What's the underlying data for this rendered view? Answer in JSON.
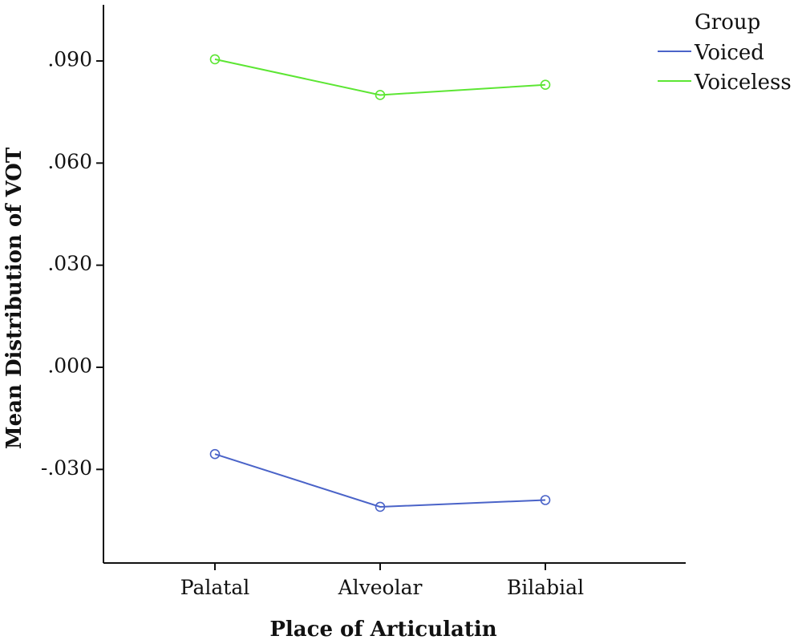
{
  "chart_data": {
    "type": "line",
    "categories": [
      "Palatal",
      "Alveolar",
      "Bilabial"
    ],
    "series": [
      {
        "name": "Voiced",
        "color": "#4a63c8",
        "values": [
          -0.0255,
          -0.041,
          -0.039
        ]
      },
      {
        "name": "Voiceless",
        "color": "#5ce633",
        "values": [
          0.0905,
          0.08,
          0.083
        ]
      }
    ],
    "xlabel": "Place of Articulatin",
    "ylabel": "Mean Distribution of VOT",
    "yticks": [
      -0.03,
      0.0,
      0.03,
      0.06,
      0.09
    ],
    "ytick_labels": [
      "-.030",
      ".000",
      ".030",
      ".060",
      ".090"
    ],
    "ylim": [
      -0.0575,
      0.1065
    ],
    "grid": false,
    "legend": {
      "title": "Group",
      "placement": "top-right",
      "entries": [
        "Voiced",
        "Voiceless"
      ]
    }
  }
}
